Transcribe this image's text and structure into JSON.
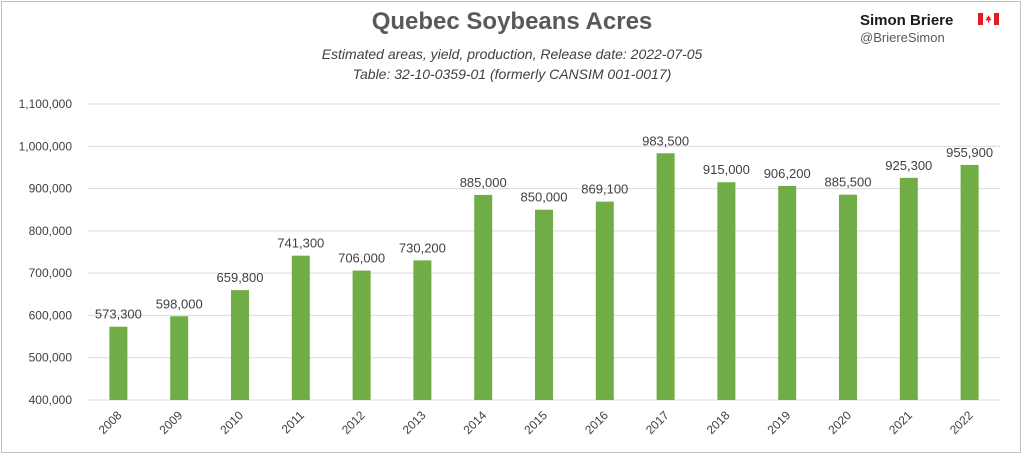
{
  "header": {
    "title": "Quebec Soybeans Acres",
    "subtitle_1": "Estimated areas, yield, production, Release date: 2022-07-05",
    "subtitle_2": "Table: 32-10-0359-01 (formerly CANSIM 001-0017)",
    "author": "Simon Briere",
    "handle": "@BriereSimon",
    "flag_icon": "canada-flag-icon"
  },
  "colors": {
    "bar": "#70ad47",
    "grid": "#d9d9d9",
    "flag_red": "#e31b23"
  },
  "chart_data": {
    "type": "bar",
    "title": "Quebec Soybeans Acres",
    "categories": [
      "2008",
      "2009",
      "2010",
      "2011",
      "2012",
      "2013",
      "2014",
      "2015",
      "2016",
      "2017",
      "2018",
      "2019",
      "2020",
      "2021",
      "2022"
    ],
    "values": [
      573300,
      598000,
      659800,
      741300,
      706000,
      730200,
      885000,
      850000,
      869100,
      983500,
      915000,
      906200,
      885500,
      925300,
      955900
    ],
    "value_labels": [
      "573,300",
      "598,000",
      "659,800",
      "741,300",
      "706,000",
      "730,200",
      "885,000",
      "850,000",
      "869,100",
      "983,500",
      "915,000",
      "906,200",
      "885,500",
      "925,300",
      "955,900"
    ],
    "ylim": [
      400000,
      1100000
    ],
    "yticks": [
      400000,
      500000,
      600000,
      700000,
      800000,
      900000,
      1000000,
      1100000
    ],
    "ytick_labels": [
      "400,000",
      "500,000",
      "600,000",
      "700,000",
      "800,000",
      "900,000",
      "1,000,000",
      "1,100,000"
    ],
    "grid": true,
    "legend": "none",
    "xlabel": "",
    "ylabel": ""
  }
}
